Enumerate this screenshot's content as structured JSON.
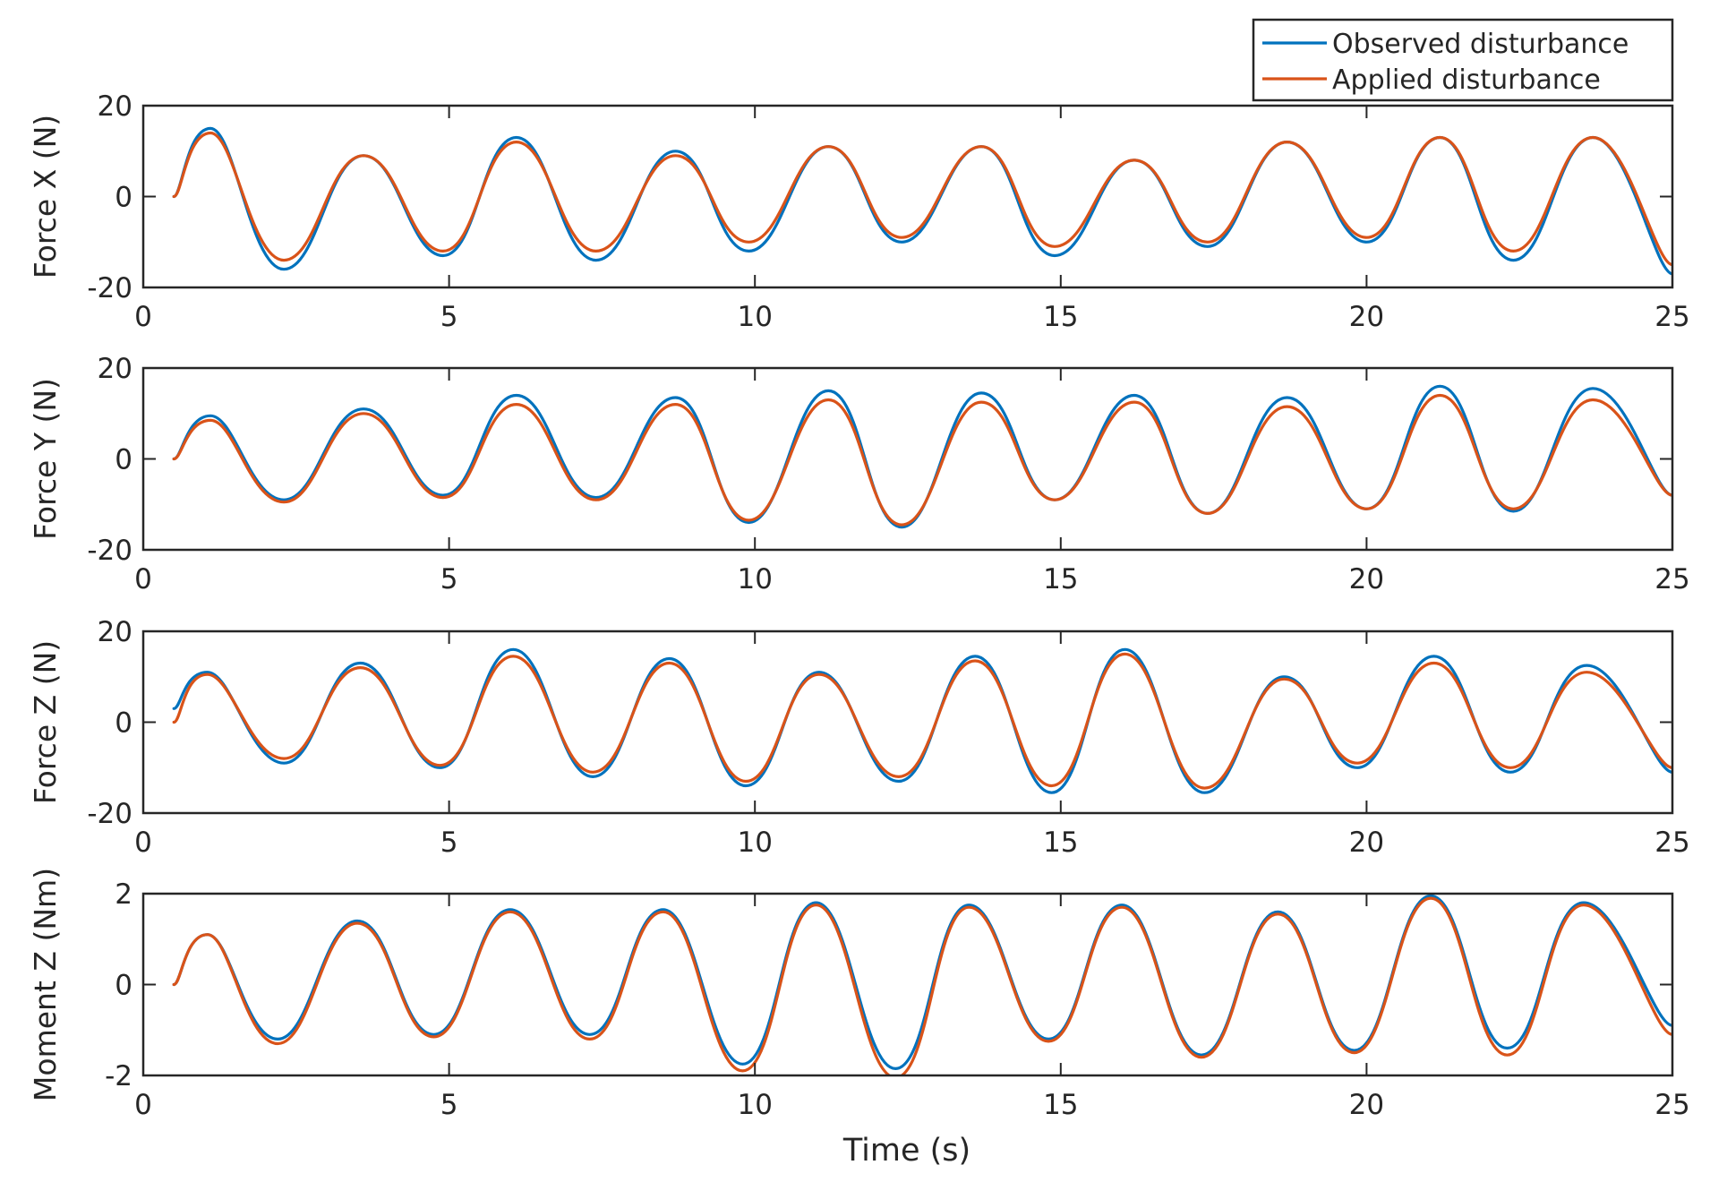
{
  "chart_data": {
    "type": "line",
    "xlabel": "Time (s)",
    "xlim": [
      0,
      25
    ],
    "xticks": [
      0,
      5,
      10,
      15,
      20,
      25
    ],
    "legend": {
      "placement": "top-right",
      "entries": [
        {
          "name": "Observed disturbance",
          "color": "#0072BD"
        },
        {
          "name": "Applied disturbance",
          "color": "#D95319"
        }
      ]
    },
    "panels": [
      {
        "ylabel": "Force X (N)",
        "ylim": [
          -20,
          20
        ],
        "yticks": [
          -20,
          0,
          20
        ],
        "x": [
          0.5,
          1.1,
          2.3,
          3.6,
          4.9,
          6.1,
          7.4,
          8.7,
          9.9,
          11.2,
          12.4,
          13.7,
          14.9,
          16.2,
          17.4,
          18.7,
          20.0,
          21.2,
          22.4,
          23.7,
          25.0
        ],
        "series": [
          {
            "name": "Observed disturbance",
            "values": [
              0,
              15,
              -16,
              9,
              -13,
              13,
              -14,
              10,
              -12,
              11,
              -10,
              11,
              -13,
              8,
              -11,
              12,
              -10,
              13,
              -14,
              13,
              -17
            ]
          },
          {
            "name": "Applied disturbance",
            "values": [
              0,
              14,
              -14,
              9,
              -12,
              12,
              -12,
              9,
              -10,
              11,
              -9,
              11,
              -11,
              8,
              -10,
              12,
              -9,
              13,
              -12,
              13,
              -15
            ]
          }
        ]
      },
      {
        "ylabel": "Force Y (N)",
        "ylim": [
          -20,
          20
        ],
        "yticks": [
          -20,
          0,
          20
        ],
        "x": [
          0.5,
          1.1,
          2.3,
          3.6,
          4.9,
          6.1,
          7.4,
          8.7,
          9.9,
          11.2,
          12.4,
          13.7,
          14.9,
          16.2,
          17.4,
          18.7,
          20.0,
          21.2,
          22.4,
          23.7,
          25.0
        ],
        "series": [
          {
            "name": "Observed disturbance",
            "values": [
              0,
              9.5,
              -9,
              11,
              -8,
              14,
              -8.5,
              13.5,
              -14,
              15,
              -15,
              14.5,
              -9,
              14,
              -12,
              13.5,
              -11,
              16,
              -11.5,
              15.5,
              -8
            ]
          },
          {
            "name": "Applied disturbance",
            "values": [
              0,
              8.5,
              -9.5,
              10,
              -8.5,
              12,
              -9,
              12,
              -13.5,
              13,
              -14.5,
              12.5,
              -9,
              12.5,
              -12,
              11.5,
              -11,
              14,
              -11,
              13,
              -8
            ]
          }
        ]
      },
      {
        "ylabel": "Force Z (N)",
        "ylim": [
          -20,
          20
        ],
        "yticks": [
          -20,
          0,
          20
        ],
        "x": [
          0.5,
          1.05,
          2.3,
          3.55,
          4.85,
          6.05,
          7.35,
          8.6,
          9.85,
          11.05,
          12.35,
          13.6,
          14.85,
          16.05,
          17.35,
          18.65,
          19.85,
          21.1,
          22.35,
          23.6,
          25.0
        ],
        "series": [
          {
            "name": "Observed disturbance",
            "values": [
              3,
              11,
              -9,
              13,
              -10,
              16,
              -12,
              14,
              -14,
              11,
              -13,
              14.5,
              -15.5,
              16,
              -15.5,
              10,
              -10,
              14.5,
              -11,
              12.5,
              -11
            ]
          },
          {
            "name": "Applied disturbance",
            "values": [
              0,
              10.5,
              -8,
              12,
              -9.5,
              14.5,
              -11,
              13,
              -13,
              10.5,
              -12,
              13.5,
              -14,
              15,
              -14.5,
              9.5,
              -9,
              13,
              -10,
              11,
              -10
            ]
          }
        ]
      },
      {
        "ylabel": "Moment Z (Nm)",
        "ylim": [
          -2,
          2
        ],
        "yticks": [
          -2,
          0,
          2
        ],
        "x": [
          0.5,
          1.05,
          2.2,
          3.5,
          4.75,
          6.0,
          7.3,
          8.5,
          9.8,
          11.0,
          12.3,
          13.5,
          14.8,
          16.0,
          17.3,
          18.55,
          19.8,
          21.05,
          22.3,
          23.55,
          25.0
        ],
        "series": [
          {
            "name": "Observed disturbance",
            "values": [
              0,
              1.1,
              -1.2,
              1.4,
              -1.1,
              1.65,
              -1.1,
              1.65,
              -1.75,
              1.8,
              -1.85,
              1.75,
              -1.2,
              1.75,
              -1.55,
              1.6,
              -1.45,
              1.95,
              -1.4,
              1.8,
              -0.9
            ]
          },
          {
            "name": "Applied disturbance",
            "values": [
              0,
              1.1,
              -1.3,
              1.35,
              -1.15,
              1.6,
              -1.2,
              1.6,
              -1.9,
              1.75,
              -2.05,
              1.7,
              -1.25,
              1.7,
              -1.6,
              1.55,
              -1.5,
              1.9,
              -1.55,
              1.75,
              -1.1
            ]
          }
        ]
      }
    ]
  }
}
